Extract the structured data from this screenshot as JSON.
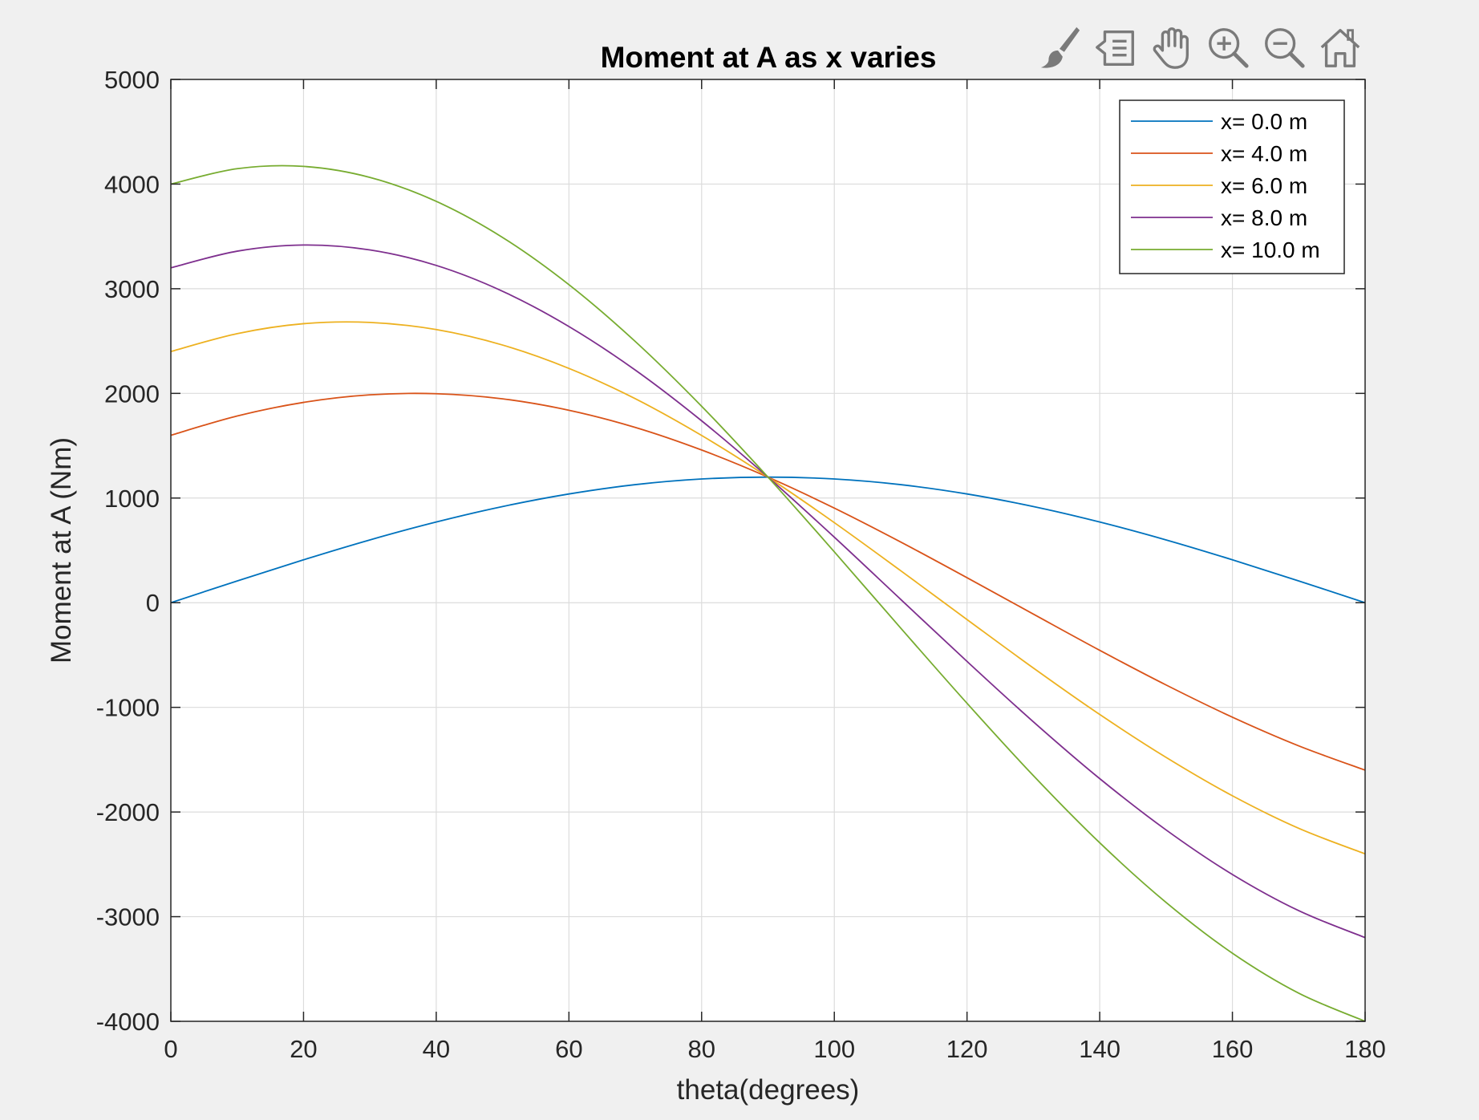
{
  "toolbar": {
    "items": [
      {
        "icon": "brush-icon"
      },
      {
        "icon": "data-tips-icon"
      },
      {
        "icon": "pan-hand-icon"
      },
      {
        "icon": "zoom-in-icon"
      },
      {
        "icon": "zoom-out-icon"
      },
      {
        "icon": "home-icon"
      }
    ]
  },
  "chart_data": {
    "type": "line",
    "title": "Moment at A as x varies",
    "xlabel": "theta(degrees)",
    "ylabel": "Moment at A (Nm)",
    "xlim": [
      0,
      180
    ],
    "ylim": [
      -4000,
      5000
    ],
    "xticks": [
      0,
      20,
      40,
      60,
      80,
      100,
      120,
      140,
      160,
      180
    ],
    "yticks": [
      -4000,
      -3000,
      -2000,
      -1000,
      0,
      1000,
      2000,
      3000,
      4000,
      5000
    ],
    "xtick_labels": [
      "0",
      "20",
      "40",
      "60",
      "80",
      "100",
      "120",
      "140",
      "160",
      "180"
    ],
    "ytick_labels": [
      "-4000",
      "-3000",
      "-2000",
      "-1000",
      "0",
      "1000",
      "2000",
      "3000",
      "4000",
      "5000"
    ],
    "grid": true,
    "legend_position": "top-right",
    "x": [
      0,
      10,
      20,
      30,
      40,
      50,
      60,
      70,
      80,
      90,
      100,
      110,
      120,
      130,
      140,
      150,
      160,
      170,
      180
    ],
    "series": [
      {
        "name": "x= 0.0 m",
        "color": "#0072bd",
        "values": [
          0,
          208,
          410,
          600,
          771,
          919,
          1039,
          1128,
          1182,
          1200,
          1182,
          1128,
          1039,
          919,
          771,
          600,
          410,
          208,
          0
        ]
      },
      {
        "name": "x= 4.0 m",
        "color": "#d95319",
        "values": [
          1600,
          1784,
          1914,
          1986,
          1997,
          1948,
          1839,
          1675,
          1459,
          1200,
          904,
          580,
          239,
          -109,
          -455,
          -786,
          -1094,
          -1368,
          -1600
        ]
      },
      {
        "name": "x= 6.0 m",
        "color": "#edb120",
        "values": [
          2400,
          2571,
          2666,
          2678,
          2610,
          2462,
          2239,
          1949,
          1598,
          1200,
          765,
          306,
          -161,
          -624,
          -1068,
          -1478,
          -1845,
          -2156,
          -2400
        ]
      },
      {
        "name": "x= 8.0 m",
        "color": "#7e2f8e",
        "values": [
          3200,
          3359,
          3418,
          3371,
          3223,
          2976,
          2639,
          2223,
          1738,
          1200,
          626,
          32,
          -561,
          -1138,
          -1681,
          -2171,
          -2597,
          -2943,
          -3200
        ]
      },
      {
        "name": "x= 10.0 m",
        "color": "#77ac30",
        "values": [
          4000,
          4147,
          4169,
          4064,
          3835,
          3490,
          3039,
          2496,
          1877,
          1200,
          486,
          -242,
          -961,
          -1652,
          -2294,
          -2864,
          -3349,
          -3731,
          -4000
        ]
      }
    ]
  }
}
